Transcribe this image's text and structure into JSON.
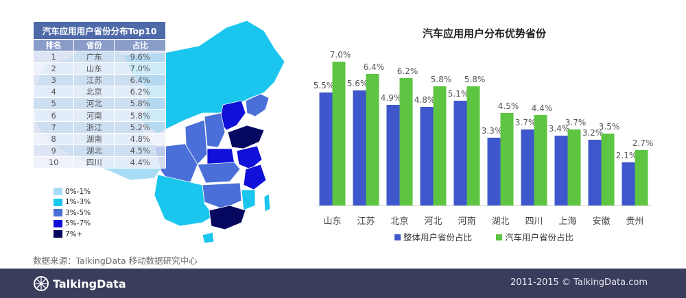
{
  "table": {
    "title": "汽车应用用户省份分布Top10",
    "headers": [
      "排名",
      "省份",
      "占比"
    ],
    "rows": [
      [
        "1",
        "广东",
        "9.6%"
      ],
      [
        "2",
        "山东",
        "7.0%"
      ],
      [
        "3",
        "江苏",
        "6.4%"
      ],
      [
        "4",
        "北京",
        "6.2%"
      ],
      [
        "5",
        "河北",
        "5.8%"
      ],
      [
        "6",
        "河南",
        "5.8%"
      ],
      [
        "7",
        "浙江",
        "5.2%"
      ],
      [
        "8",
        "湖南",
        "4.8%"
      ],
      [
        "9",
        "湖北",
        "4.5%"
      ],
      [
        "10",
        "四川",
        "4.4%"
      ]
    ]
  },
  "map_legend": [
    {
      "label": "0%-1%",
      "color": "#a8dcf5"
    },
    {
      "label": "1%-3%",
      "color": "#1ac6ee"
    },
    {
      "label": "3%-5%",
      "color": "#4a6fd8"
    },
    {
      "label": "5%-7%",
      "color": "#1010d8"
    },
    {
      "label": "7%+",
      "color": "#060860"
    }
  ],
  "source": "数据来源：TalkingData 移动数据研究中心",
  "chart_data": {
    "type": "bar",
    "title": "汽车应用用户分布优势省份",
    "categories": [
      "山东",
      "江苏",
      "北京",
      "河北",
      "河南",
      "湖北",
      "四川",
      "上海",
      "安徽",
      "贵州"
    ],
    "series": [
      {
        "name": "整体用户省份占比",
        "color": "#3e57cc",
        "values": [
          5.5,
          5.6,
          4.9,
          4.8,
          5.1,
          3.3,
          3.7,
          3.4,
          3.2,
          2.1
        ],
        "labels": [
          "5.5%",
          "5.6%",
          "4.9%",
          "4.8%",
          "5.1%",
          "3.3%",
          "3.7%",
          "3.4%",
          "3.2%",
          "2.1%"
        ]
      },
      {
        "name": "汽车用户省份占比",
        "color": "#5dc541",
        "values": [
          7.0,
          6.4,
          6.2,
          5.8,
          5.8,
          4.5,
          4.4,
          3.7,
          3.5,
          2.7
        ],
        "labels": [
          "7.0%",
          "6.4%",
          "6.2%",
          "5.8%",
          "5.8%",
          "4.5%",
          "4.4%",
          "3.7%",
          "3.5%",
          "2.7%"
        ]
      }
    ],
    "ylim": [
      0,
      7.5
    ],
    "grid": false,
    "legend": "bottom"
  },
  "footer": {
    "brand": "TalkingData",
    "copyright": "2011-2015 © TalkingData.com"
  }
}
